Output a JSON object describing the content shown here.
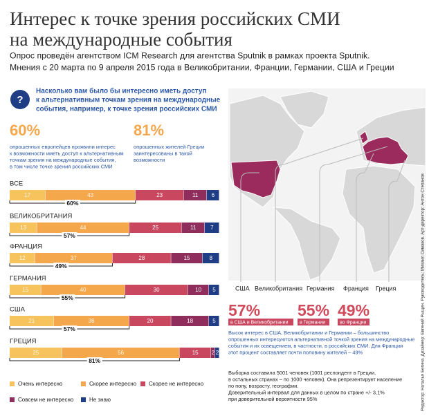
{
  "header": {
    "title_lines": [
      "Интерес к точке зрения российских СМИ",
      "на международные события"
    ],
    "subtitle_lines": [
      "Опрос проведён агентством ICM Research для агентства Sputnik в рамках проекта Sputnik.",
      "Мнения с 20 марта по 9 апреля 2015 года в Великобритании, Франции, Германии, США и Греции"
    ]
  },
  "question": {
    "icon": "?",
    "lines": [
      "Насколько вам было бы интересно иметь доступ",
      "к альтернативным точкам зрения на международные",
      "события, например, к точке зрения российских СМИ"
    ]
  },
  "key_stats": [
    {
      "value": "60%",
      "lines": [
        "опрошенных европейцев проявили интерес",
        "к возможности иметь доступ к альтернативным",
        "точкам зрения на международные события,",
        "в том числе точке зрения российских СМИ"
      ]
    },
    {
      "value": "81%",
      "lines": [
        "опрошенных жителей Греции",
        "заинтересованы в такой",
        "возможности"
      ]
    }
  ],
  "chart_data": {
    "type": "stacked-bar",
    "orientation": "horizontal",
    "categories": [
      "ВСЕ",
      "ВЕЛИКОБРИТАНИЯ",
      "ФРАНЦИЯ",
      "ГЕРМАНИЯ",
      "США",
      "ГРЕЦИЯ"
    ],
    "xlim": [
      0,
      100
    ],
    "series": [
      {
        "name": "Очень интересно",
        "color": "#f7c35d",
        "values": [
          17,
          13,
          12,
          15,
          21,
          25
        ]
      },
      {
        "name": "Скорее интересно",
        "color": "#f5a74c",
        "values": [
          43,
          44,
          37,
          40,
          36,
          56
        ]
      },
      {
        "name": "Скорее не интересно",
        "color": "#c9475f",
        "values": [
          23,
          25,
          28,
          30,
          20,
          15
        ]
      },
      {
        "name": "Совсем не интересно",
        "color": "#8f2d5c",
        "values": [
          11,
          11,
          15,
          10,
          18,
          2
        ]
      },
      {
        "name": "Не знаю",
        "color": "#1f3d84",
        "values": [
          6,
          7,
          8,
          5,
          5,
          2
        ]
      }
    ],
    "combined": {
      "values": [
        60,
        57,
        49,
        55,
        57,
        81
      ],
      "value_labels": [
        "60%",
        "57%",
        "49%",
        "55%",
        "57%",
        "81%"
      ]
    }
  },
  "map": {
    "labels": [
      "США",
      "Великобритания",
      "Германия",
      "Франция",
      "Греция"
    ],
    "highlight_color": "#9b2b5c"
  },
  "country_stats": [
    {
      "value": "57%",
      "tag": "в США и Великобритании"
    },
    {
      "value": "55%",
      "tag": "в Германии"
    },
    {
      "value": "49%",
      "tag": "во Франции"
    }
  ],
  "findings_lines": [
    "Высок интерес в США, Великобритании и Германии – большинство",
    "опрошенных интересуются альтернативной точкой зрения на международные",
    "события и их освещением, в частности, в российских СМИ. Для Франции",
    "этот процент составляет почти половину жителей – 49%"
  ],
  "method_lines": [
    "Выборка составила 5001 человек (1001 респондент в Греции,",
    "в остальных странах – по 1000 человек). Она репрезентирует население",
    "по полу, возрасту, географии.",
    "Доверительный интервал для данных в целом по стране +/- 3,1%",
    "при доверительной вероятности 95%"
  ],
  "credits": "Редактор: Наталья Бегина. Дизайнер: Евгений Рыщин. Руководитель: Михаил Симаков. Арт-директор: Антон Степанов"
}
